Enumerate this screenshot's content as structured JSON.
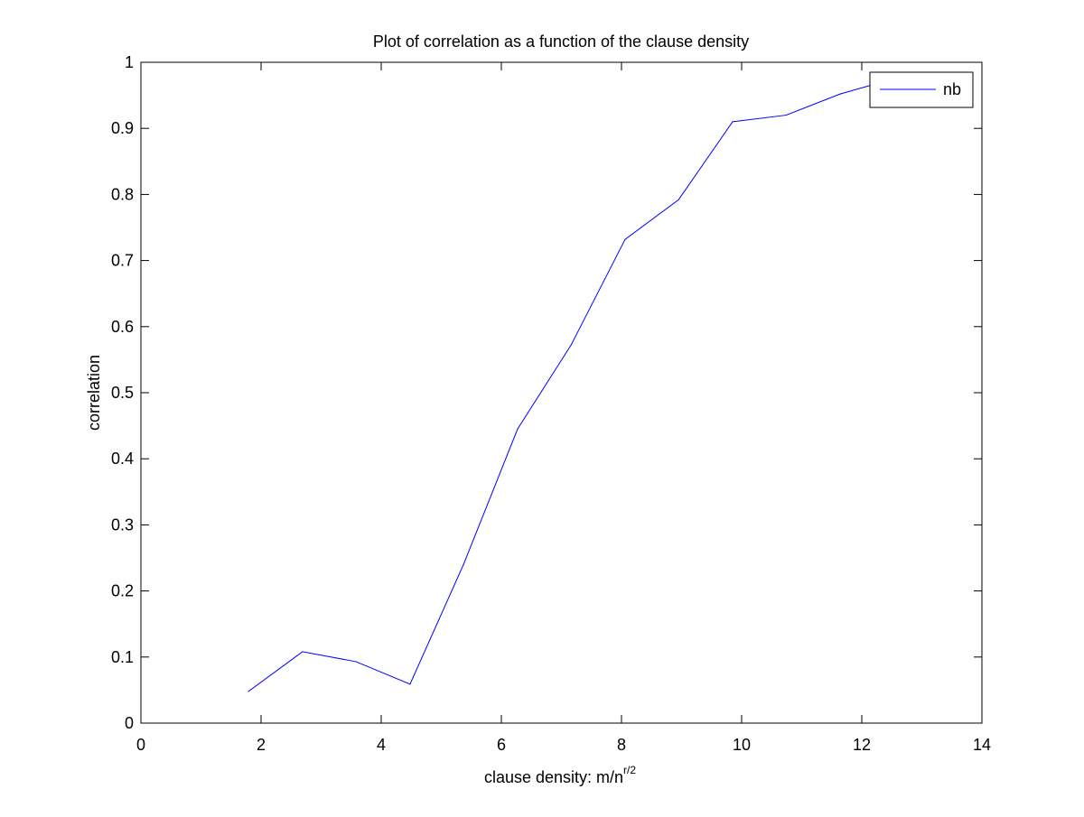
{
  "chart_data": {
    "type": "line",
    "title": "Plot of correlation as a function of the clause density",
    "xlabel": {
      "text": "clause density: m/n",
      "superscript": "r/2"
    },
    "ylabel": "correlation",
    "xlim": [
      0,
      14
    ],
    "ylim": [
      0,
      1
    ],
    "xticks": [
      0,
      2,
      4,
      6,
      8,
      10,
      12,
      14
    ],
    "yticks": [
      0,
      0.1,
      0.2,
      0.3,
      0.4,
      0.5,
      0.6,
      0.7,
      0.8,
      0.9,
      1
    ],
    "xtick_labels": [
      "0",
      "2",
      "4",
      "6",
      "8",
      "10",
      "12",
      "14"
    ],
    "ytick_labels": [
      "0",
      "0.1",
      "0.2",
      "0.3",
      "0.4",
      "0.5",
      "0.6",
      "0.7",
      "0.8",
      "0.9",
      "1"
    ],
    "grid": false,
    "legend_position": "top-right",
    "series": [
      {
        "name": "nb",
        "color": "#0000ff",
        "x": [
          1.79,
          2.69,
          3.58,
          4.48,
          5.37,
          6.27,
          7.16,
          8.06,
          8.95,
          9.85,
          10.74,
          11.64,
          12.53,
          13.43
        ],
        "y": [
          0.048,
          0.108,
          0.093,
          0.059,
          0.24,
          0.445,
          0.572,
          0.732,
          0.792,
          0.91,
          0.92,
          0.952,
          0.975,
          0.985
        ]
      }
    ]
  }
}
